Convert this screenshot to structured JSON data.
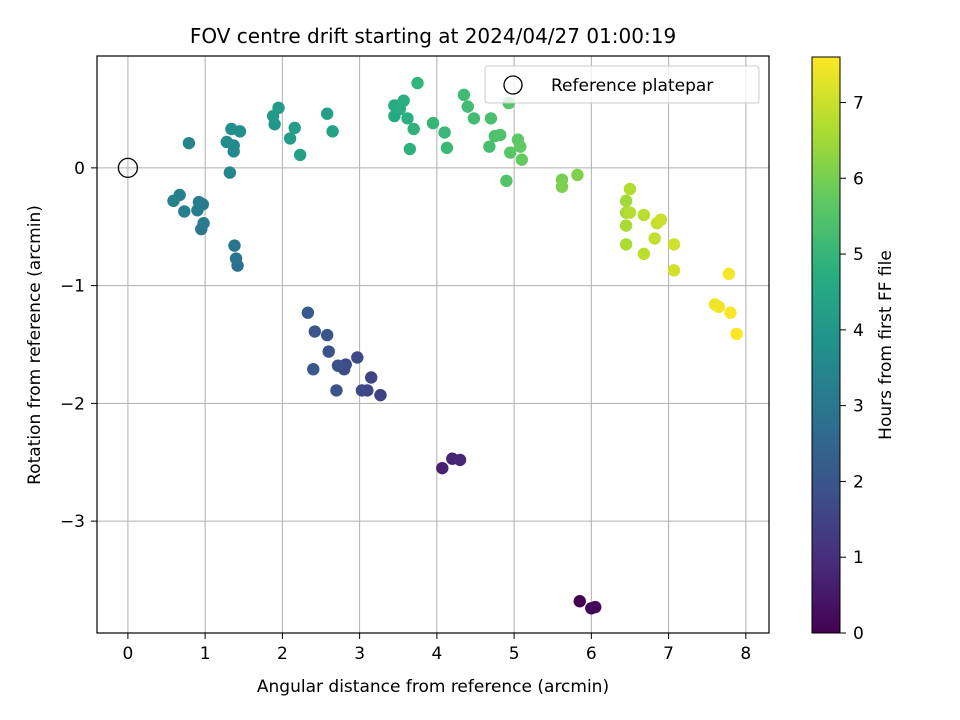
{
  "chart_data": {
    "type": "scatter",
    "title": "FOV centre drift starting at 2024/04/27 01:00:19",
    "xlabel": "Angular distance from reference (arcmin)",
    "ylabel": "Rotation from reference (arcmin)",
    "xlim": [
      -0.4,
      8.3
    ],
    "ylim": [
      -3.95,
      0.95
    ],
    "xticks": [
      0,
      1,
      2,
      3,
      4,
      5,
      6,
      7,
      8
    ],
    "yticks": [
      0,
      -1,
      -2,
      -3
    ],
    "grid": true,
    "legend": {
      "placement": "top-right",
      "entries": [
        "Reference platepar"
      ]
    },
    "reference_point": {
      "label": "Reference platepar",
      "x": 0,
      "y": 0
    },
    "colorbar": {
      "label": "Hours from first FF file",
      "range": [
        0,
        7.6
      ],
      "ticks": [
        0,
        1,
        2,
        3,
        4,
        5,
        6,
        7
      ],
      "colormap": "viridis"
    },
    "points": [
      {
        "x": 5.85,
        "y": -3.68,
        "c": 0.0
      },
      {
        "x": 6.0,
        "y": -3.74,
        "c": 0.05
      },
      {
        "x": 6.05,
        "y": -3.73,
        "c": 0.1
      },
      {
        "x": 4.07,
        "y": -2.55,
        "c": 0.7
      },
      {
        "x": 4.2,
        "y": -2.47,
        "c": 0.75
      },
      {
        "x": 4.3,
        "y": -2.48,
        "c": 0.8
      },
      {
        "x": 3.27,
        "y": -1.93,
        "c": 1.5
      },
      {
        "x": 3.15,
        "y": -1.78,
        "c": 1.55
      },
      {
        "x": 3.1,
        "y": -1.89,
        "c": 1.6
      },
      {
        "x": 3.03,
        "y": -1.89,
        "c": 1.65
      },
      {
        "x": 2.97,
        "y": -1.61,
        "c": 1.7
      },
      {
        "x": 2.82,
        "y": -1.67,
        "c": 1.75
      },
      {
        "x": 2.8,
        "y": -1.71,
        "c": 1.8
      },
      {
        "x": 2.72,
        "y": -1.68,
        "c": 1.85
      },
      {
        "x": 2.7,
        "y": -1.89,
        "c": 1.9
      },
      {
        "x": 2.6,
        "y": -1.56,
        "c": 1.95
      },
      {
        "x": 2.58,
        "y": -1.42,
        "c": 2.0
      },
      {
        "x": 2.42,
        "y": -1.39,
        "c": 2.05
      },
      {
        "x": 2.4,
        "y": -1.71,
        "c": 2.1
      },
      {
        "x": 2.33,
        "y": -1.23,
        "c": 2.15
      },
      {
        "x": 1.42,
        "y": -0.83,
        "c": 2.8
      },
      {
        "x": 1.4,
        "y": -0.77,
        "c": 2.85
      },
      {
        "x": 1.38,
        "y": -0.66,
        "c": 2.9
      },
      {
        "x": 0.95,
        "y": -0.52,
        "c": 3.0
      },
      {
        "x": 0.98,
        "y": -0.47,
        "c": 3.05
      },
      {
        "x": 0.97,
        "y": -0.31,
        "c": 3.1
      },
      {
        "x": 0.92,
        "y": -0.29,
        "c": 3.15
      },
      {
        "x": 0.9,
        "y": -0.36,
        "c": 3.2
      },
      {
        "x": 0.73,
        "y": -0.37,
        "c": 3.25
      },
      {
        "x": 0.67,
        "y": -0.23,
        "c": 3.3
      },
      {
        "x": 0.59,
        "y": -0.28,
        "c": 3.35
      },
      {
        "x": 0.79,
        "y": 0.21,
        "c": 3.4
      },
      {
        "x": 1.32,
        "y": -0.04,
        "c": 3.45
      },
      {
        "x": 1.37,
        "y": 0.14,
        "c": 3.55
      },
      {
        "x": 1.37,
        "y": 0.19,
        "c": 3.6
      },
      {
        "x": 1.28,
        "y": 0.22,
        "c": 3.65
      },
      {
        "x": 1.34,
        "y": 0.33,
        "c": 3.7
      },
      {
        "x": 1.45,
        "y": 0.31,
        "c": 3.75
      },
      {
        "x": 1.9,
        "y": 0.37,
        "c": 4.0
      },
      {
        "x": 1.88,
        "y": 0.44,
        "c": 4.05
      },
      {
        "x": 1.95,
        "y": 0.51,
        "c": 4.1
      },
      {
        "x": 2.1,
        "y": 0.25,
        "c": 4.15
      },
      {
        "x": 2.16,
        "y": 0.34,
        "c": 4.2
      },
      {
        "x": 2.23,
        "y": 0.11,
        "c": 4.25
      },
      {
        "x": 2.58,
        "y": 0.46,
        "c": 4.3
      },
      {
        "x": 2.65,
        "y": 0.31,
        "c": 4.35
      },
      {
        "x": 3.45,
        "y": 0.44,
        "c": 4.6
      },
      {
        "x": 3.45,
        "y": 0.53,
        "c": 4.65
      },
      {
        "x": 3.52,
        "y": 0.5,
        "c": 4.7
      },
      {
        "x": 3.57,
        "y": 0.57,
        "c": 4.75
      },
      {
        "x": 3.62,
        "y": 0.42,
        "c": 4.8
      },
      {
        "x": 3.65,
        "y": 0.16,
        "c": 4.85
      },
      {
        "x": 3.7,
        "y": 0.33,
        "c": 4.9
      },
      {
        "x": 3.75,
        "y": 0.72,
        "c": 4.95
      },
      {
        "x": 3.95,
        "y": 0.38,
        "c": 5.0
      },
      {
        "x": 4.1,
        "y": 0.3,
        "c": 5.05
      },
      {
        "x": 4.13,
        "y": 0.17,
        "c": 5.1
      },
      {
        "x": 4.35,
        "y": 0.62,
        "c": 5.15
      },
      {
        "x": 4.4,
        "y": 0.52,
        "c": 5.2
      },
      {
        "x": 4.48,
        "y": 0.42,
        "c": 5.25
      },
      {
        "x": 4.68,
        "y": 0.18,
        "c": 5.3
      },
      {
        "x": 4.7,
        "y": 0.42,
        "c": 5.35
      },
      {
        "x": 4.75,
        "y": 0.27,
        "c": 5.4
      },
      {
        "x": 4.82,
        "y": 0.28,
        "c": 5.45
      },
      {
        "x": 4.9,
        "y": -0.11,
        "c": 5.5
      },
      {
        "x": 4.93,
        "y": 0.55,
        "c": 5.55
      },
      {
        "x": 4.95,
        "y": 0.13,
        "c": 5.6
      },
      {
        "x": 5.05,
        "y": 0.24,
        "c": 5.65
      },
      {
        "x": 5.08,
        "y": 0.18,
        "c": 5.7
      },
      {
        "x": 5.1,
        "y": 0.07,
        "c": 5.75
      },
      {
        "x": 5.62,
        "y": -0.1,
        "c": 6.0
      },
      {
        "x": 5.62,
        "y": -0.16,
        "c": 6.05
      },
      {
        "x": 5.82,
        "y": -0.06,
        "c": 6.1
      },
      {
        "x": 6.45,
        "y": -0.28,
        "c": 6.5
      },
      {
        "x": 6.45,
        "y": -0.38,
        "c": 6.55
      },
      {
        "x": 6.45,
        "y": -0.49,
        "c": 6.6
      },
      {
        "x": 6.45,
        "y": -0.65,
        "c": 6.65
      },
      {
        "x": 6.5,
        "y": -0.18,
        "c": 6.7
      },
      {
        "x": 6.5,
        "y": -0.38,
        "c": 6.75
      },
      {
        "x": 6.68,
        "y": -0.4,
        "c": 6.8
      },
      {
        "x": 6.68,
        "y": -0.73,
        "c": 6.85
      },
      {
        "x": 6.82,
        "y": -0.6,
        "c": 6.9
      },
      {
        "x": 6.85,
        "y": -0.47,
        "c": 6.95
      },
      {
        "x": 6.9,
        "y": -0.44,
        "c": 7.0
      },
      {
        "x": 7.07,
        "y": -0.65,
        "c": 7.05
      },
      {
        "x": 7.07,
        "y": -0.87,
        "c": 7.1
      },
      {
        "x": 7.6,
        "y": -1.16,
        "c": 7.4
      },
      {
        "x": 7.65,
        "y": -1.18,
        "c": 7.45
      },
      {
        "x": 7.78,
        "y": -0.9,
        "c": 7.5
      },
      {
        "x": 7.8,
        "y": -1.23,
        "c": 7.55
      },
      {
        "x": 7.88,
        "y": -1.41,
        "c": 7.6
      }
    ]
  }
}
